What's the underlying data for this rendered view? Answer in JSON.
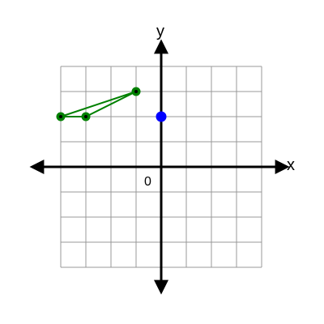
{
  "chart_data": {
    "type": "scatter",
    "title": "",
    "xlabel": "x",
    "ylabel": "y",
    "origin_label": "0",
    "xlim": [
      -4,
      4
    ],
    "ylim": [
      -4,
      4
    ],
    "grid": true,
    "tick_labels": false,
    "colors": {
      "grid": "#999999",
      "axis": "#000000",
      "triangle": "#008000",
      "triangle_marker": "#000000",
      "point": "#0000ff"
    },
    "series": [
      {
        "type": "polygon",
        "points": [
          {
            "x": -4,
            "y": 2
          },
          {
            "x": -3,
            "y": 2
          },
          {
            "x": -1,
            "y": 3
          }
        ]
      },
      {
        "type": "point",
        "points": [
          {
            "x": 0,
            "y": 2
          }
        ]
      }
    ]
  }
}
